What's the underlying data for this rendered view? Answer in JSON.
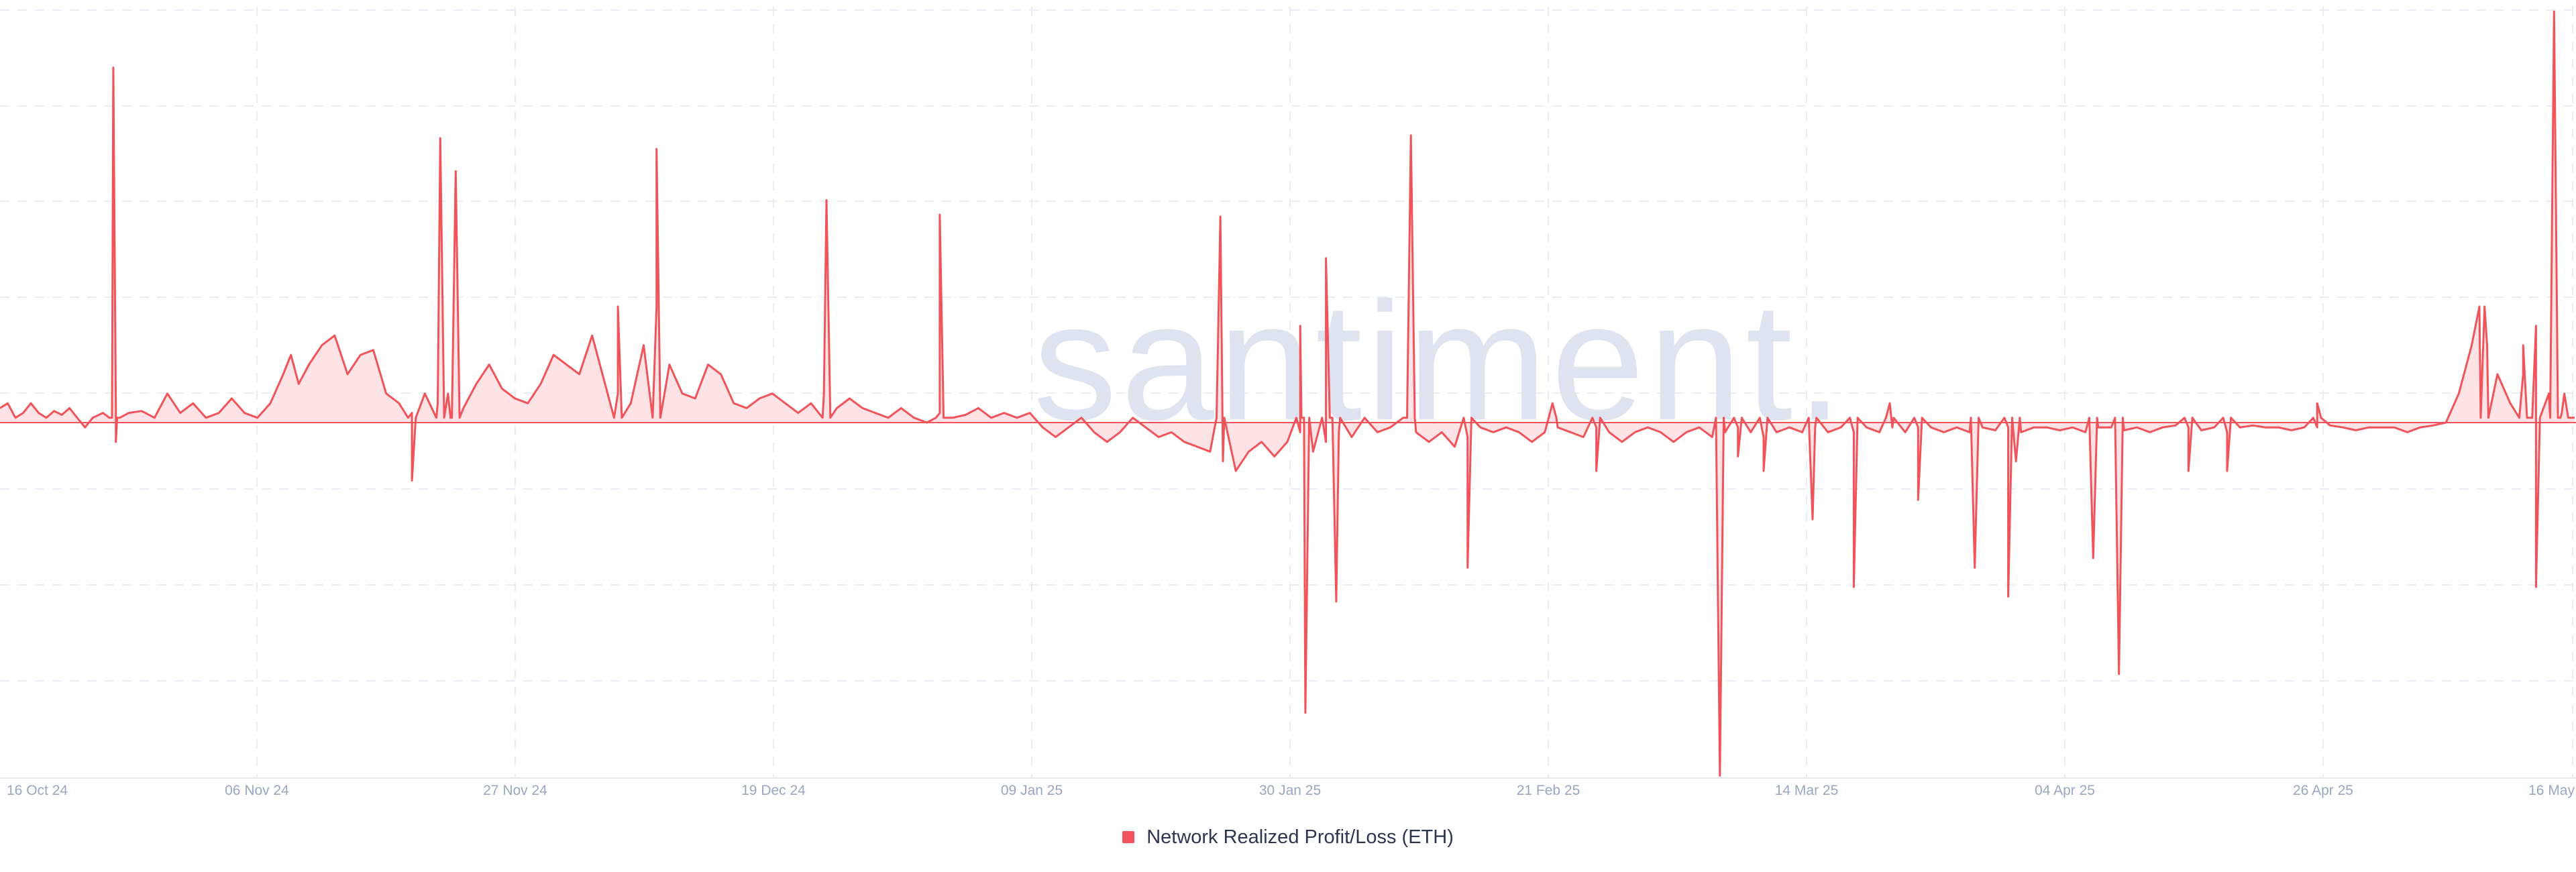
{
  "watermark": "santiment.",
  "chart_data": {
    "type": "area",
    "title": "",
    "xlabel": "",
    "ylabel": "",
    "grid": true,
    "legend_placement": "bottom-center",
    "x_ticks": [
      "16 Oct 24",
      "06 Nov 24",
      "27 Nov 24",
      "19 Dec 24",
      "09 Jan 25",
      "30 Jan 25",
      "21 Feb 25",
      "14 Mar 25",
      "04 Apr 25",
      "26 Apr 25",
      "16 May"
    ],
    "y_range_units": [
      -3.7,
      4.3
    ],
    "series": [
      {
        "name": "Network Realized Profit/Loss (ETH)",
        "color": "#f0545a",
        "fill": "#fde3e5",
        "dense_base": [
          [
            0,
            0.15
          ],
          [
            0.3,
            0.2
          ],
          [
            0.6,
            0.05
          ],
          [
            0.9,
            0.1
          ],
          [
            1.2,
            0.2
          ],
          [
            1.5,
            0.1
          ],
          [
            1.8,
            0.05
          ],
          [
            2.1,
            0.12
          ],
          [
            2.4,
            0.08
          ],
          [
            2.7,
            0.15
          ],
          [
            3,
            0.05
          ],
          [
            3.3,
            -0.05
          ],
          [
            3.6,
            0.05
          ],
          [
            4,
            0.1
          ],
          [
            4.5,
            0.15
          ],
          [
            5,
            0.1
          ],
          [
            5.5,
            0.12
          ],
          [
            6,
            0.05
          ],
          [
            6.5,
            0.3
          ],
          [
            7,
            0.1
          ],
          [
            7.5,
            0.2
          ],
          [
            8,
            0.05
          ],
          [
            8.5,
            0.1
          ],
          [
            9,
            0.25
          ],
          [
            9.5,
            0.1
          ],
          [
            10,
            0.05
          ],
          [
            10.5,
            0.2
          ],
          [
            11,
            0.5
          ],
          [
            11.3,
            0.7
          ],
          [
            11.6,
            0.4
          ],
          [
            12,
            0.6
          ],
          [
            12.5,
            0.8
          ],
          [
            13,
            0.9
          ],
          [
            13.5,
            0.5
          ],
          [
            14,
            0.7
          ],
          [
            14.5,
            0.75
          ],
          [
            15,
            0.3
          ],
          [
            15.5,
            0.2
          ],
          [
            16,
            0.1
          ],
          [
            16.5,
            0.3
          ],
          [
            17,
            0.2
          ],
          [
            17.5,
            0.05
          ],
          [
            18,
            0.15
          ],
          [
            18.5,
            0.4
          ],
          [
            19,
            0.6
          ],
          [
            19.5,
            0.35
          ],
          [
            20,
            0.25
          ],
          [
            20.5,
            0.2
          ],
          [
            21,
            0.4
          ],
          [
            21.5,
            0.7
          ],
          [
            22,
            0.6
          ],
          [
            22.5,
            0.5
          ],
          [
            23,
            0.9
          ],
          [
            23.5,
            0.4
          ],
          [
            24,
            0.3
          ],
          [
            24.5,
            0.2
          ],
          [
            25,
            0.8
          ],
          [
            25.5,
            1.2
          ],
          [
            26,
            0.6
          ],
          [
            26.5,
            0.3
          ],
          [
            27,
            0.25
          ],
          [
            27.5,
            0.6
          ],
          [
            28,
            0.5
          ],
          [
            28.5,
            0.2
          ],
          [
            29,
            0.15
          ],
          [
            29.5,
            0.25
          ],
          [
            30,
            0.3
          ],
          [
            30.5,
            0.2
          ],
          [
            31,
            0.1
          ],
          [
            31.5,
            0.2
          ],
          [
            32,
            0.3
          ],
          [
            32.5,
            0.15
          ],
          [
            33,
            0.25
          ],
          [
            33.5,
            0.15
          ],
          [
            34,
            0.1
          ],
          [
            34.5,
            0.05
          ],
          [
            35,
            0.15
          ],
          [
            35.5,
            0.05
          ],
          [
            36,
            0
          ],
          [
            36.5,
            0.1
          ],
          [
            37,
            0.05
          ],
          [
            37.5,
            0.08
          ],
          [
            38,
            0.15
          ],
          [
            38.5,
            0.05
          ],
          [
            39,
            0.1
          ],
          [
            39.5,
            0.05
          ],
          [
            40,
            0.1
          ],
          [
            40.5,
            -0.05
          ],
          [
            41,
            -0.15
          ],
          [
            41.5,
            -0.05
          ],
          [
            42,
            0.05
          ],
          [
            42.5,
            -0.1
          ],
          [
            43,
            -0.2
          ],
          [
            43.5,
            -0.1
          ],
          [
            44,
            0.05
          ],
          [
            44.5,
            -0.05
          ],
          [
            45,
            -0.15
          ],
          [
            45.5,
            -0.1
          ],
          [
            46,
            -0.2
          ],
          [
            46.5,
            -0.25
          ],
          [
            47,
            -0.3
          ],
          [
            47.5,
            -0.4
          ],
          [
            48,
            -0.5
          ],
          [
            48.5,
            -0.3
          ],
          [
            49,
            -0.2
          ],
          [
            49.5,
            -0.35
          ],
          [
            50,
            -0.2
          ],
          [
            50.5,
            -0.1
          ],
          [
            51,
            -0.3
          ],
          [
            51.5,
            -0.2
          ],
          [
            52,
            -0.1
          ],
          [
            52.5,
            -0.15
          ],
          [
            53,
            0.05
          ],
          [
            53.5,
            -0.1
          ],
          [
            54,
            -0.05
          ],
          [
            54.5,
            0.05
          ],
          [
            55,
            -0.1
          ],
          [
            55.5,
            -0.2
          ],
          [
            56,
            -0.1
          ],
          [
            56.5,
            -0.25
          ],
          [
            57,
            -0.15
          ],
          [
            57.5,
            -0.05
          ],
          [
            58,
            -0.1
          ],
          [
            58.5,
            -0.05
          ],
          [
            59,
            -0.1
          ],
          [
            59.5,
            -0.2
          ],
          [
            60,
            -0.1
          ],
          [
            60.5,
            -0.05
          ],
          [
            61,
            -0.1
          ],
          [
            61.5,
            -0.15
          ],
          [
            62,
            -0.05
          ],
          [
            62.5,
            -0.1
          ],
          [
            63,
            -0.2
          ],
          [
            63.5,
            -0.1
          ],
          [
            64,
            -0.05
          ],
          [
            64.5,
            -0.1
          ],
          [
            65,
            -0.2
          ],
          [
            65.5,
            -0.1
          ],
          [
            66,
            -0.05
          ],
          [
            66.5,
            -0.15
          ],
          [
            67,
            -0.1
          ],
          [
            67.5,
            -0.05
          ],
          [
            68,
            -0.1
          ],
          [
            68.5,
            -0.15
          ],
          [
            69,
            -0.1
          ],
          [
            69.5,
            -0.05
          ],
          [
            70,
            -0.1
          ],
          [
            70.5,
            -0.05
          ],
          [
            71,
            -0.1
          ],
          [
            71.5,
            -0.05
          ],
          [
            72,
            -0.1
          ],
          [
            72.5,
            -0.05
          ],
          [
            73,
            -0.1
          ],
          [
            73.5,
            -0.05
          ],
          [
            74,
            -0.1
          ],
          [
            74.5,
            -0.05
          ],
          [
            75,
            -0.05
          ],
          [
            75.5,
            -0.1
          ],
          [
            76,
            -0.05
          ],
          [
            76.5,
            -0.1
          ],
          [
            77,
            -0.05
          ],
          [
            77.5,
            -0.08
          ],
          [
            78,
            -0.05
          ],
          [
            78.5,
            -0.1
          ],
          [
            79,
            -0.05
          ],
          [
            79.5,
            -0.05
          ],
          [
            80,
            -0.08
          ],
          [
            80.5,
            -0.05
          ],
          [
            81,
            -0.1
          ],
          [
            81.5,
            -0.05
          ],
          [
            82,
            -0.05
          ],
          [
            82.5,
            -0.08
          ],
          [
            83,
            -0.05
          ],
          [
            83.5,
            -0.1
          ],
          [
            84,
            -0.05
          ],
          [
            84.5,
            -0.03
          ],
          [
            85,
            -0.05
          ],
          [
            85.5,
            -0.08
          ],
          [
            86,
            -0.05
          ],
          [
            86.5,
            -0.1
          ],
          [
            87,
            -0.05
          ],
          [
            87.5,
            -0.03
          ],
          [
            88,
            -0.05
          ],
          [
            88.5,
            -0.05
          ],
          [
            89,
            -0.08
          ],
          [
            89.5,
            -0.05
          ],
          [
            90,
            -0.05
          ],
          [
            90.5,
            -0.03
          ],
          [
            91,
            -0.05
          ],
          [
            91.5,
            -0.08
          ],
          [
            92,
            -0.05
          ],
          [
            92.5,
            -0.05
          ],
          [
            93,
            -0.05
          ],
          [
            93.5,
            -0.1
          ],
          [
            94,
            -0.05
          ],
          [
            94.5,
            -0.03
          ],
          [
            95,
            0
          ],
          [
            95.5,
            0.3
          ],
          [
            96,
            0.8
          ],
          [
            96.3,
            1.2
          ],
          [
            96.6,
            0.8
          ],
          [
            97,
            0.5
          ],
          [
            97.5,
            0.2
          ],
          [
            98,
            0.5
          ],
          [
            98.5,
            1.0
          ],
          [
            99,
            0.3
          ],
          [
            99.5,
            0.1
          ],
          [
            100,
            0.05
          ]
        ],
        "spikes": [
          [
            4.4,
            3.67
          ],
          [
            4.5,
            -0.2
          ],
          [
            17.1,
            2.94
          ],
          [
            17.4,
            0.3
          ],
          [
            17.7,
            2.6
          ],
          [
            16.0,
            -0.6
          ],
          [
            25.5,
            2.83
          ],
          [
            24.0,
            1.2
          ],
          [
            32.1,
            2.3
          ],
          [
            36.5,
            2.15
          ],
          [
            47.4,
            2.13
          ],
          [
            50.5,
            1.0
          ],
          [
            50.7,
            -3.0
          ],
          [
            51.5,
            1.7
          ],
          [
            51.9,
            -1.85
          ],
          [
            54.8,
            2.97
          ],
          [
            57.0,
            -1.5
          ],
          [
            60.3,
            0.2
          ],
          [
            62.0,
            -0.5
          ],
          [
            66.8,
            -3.65
          ],
          [
            67.5,
            -0.35
          ],
          [
            68.5,
            -0.5
          ],
          [
            70.4,
            -1.0
          ],
          [
            72.0,
            -1.7
          ],
          [
            73.4,
            0.2
          ],
          [
            74.5,
            -0.8
          ],
          [
            76.7,
            -1.5
          ],
          [
            78.0,
            -1.8
          ],
          [
            78.3,
            -0.4
          ],
          [
            81.3,
            -1.4
          ],
          [
            82.3,
            -2.6
          ],
          [
            85.0,
            -0.5
          ],
          [
            86.5,
            -0.5
          ],
          [
            90.0,
            0.2
          ],
          [
            96.5,
            1.2
          ],
          [
            98.0,
            0.8
          ],
          [
            98.5,
            -1.7
          ],
          [
            99.2,
            4.25
          ],
          [
            99.6,
            0.3
          ]
        ]
      }
    ]
  }
}
